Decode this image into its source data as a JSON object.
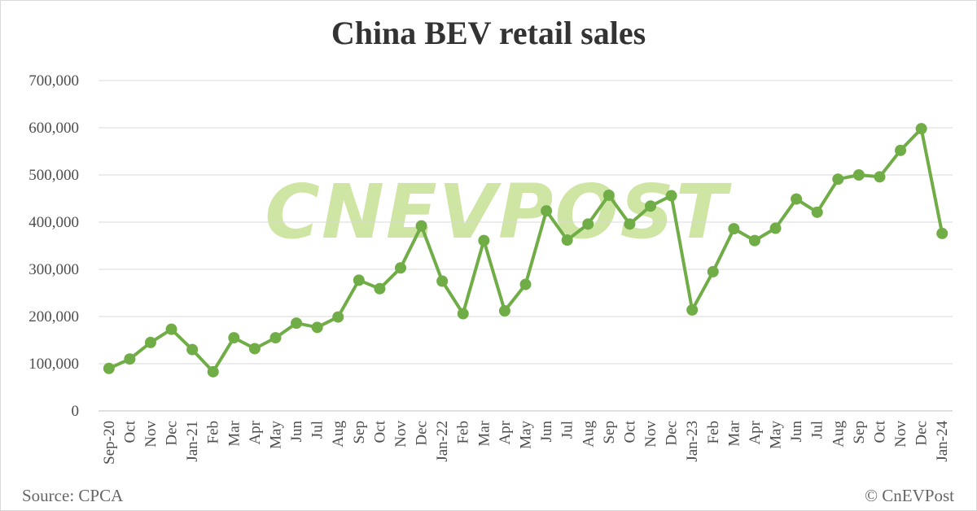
{
  "chart_data": {
    "type": "line",
    "title": "China BEV retail sales",
    "source": "Source: CPCA",
    "copyright": "© CnEVPost",
    "watermark": "CNEVPOST",
    "line_color": "#70ad47",
    "watermark_color": "#a9d15a",
    "grid": true,
    "ylim": [
      0,
      700000
    ],
    "yticks": [
      0,
      100000,
      200000,
      300000,
      400000,
      500000,
      600000,
      700000
    ],
    "ytick_labels": [
      "0",
      "100,000",
      "200,000",
      "300,000",
      "400,000",
      "500,000",
      "600,000",
      "700,000"
    ],
    "categories": [
      "Sep-20",
      "Oct",
      "Nov",
      "Dec",
      "Jan-21",
      "Feb",
      "Mar",
      "Apr",
      "May",
      "Jun",
      "Jul",
      "Aug",
      "Sep",
      "Oct",
      "Nov",
      "Dec",
      "Jan-22",
      "Feb",
      "Mar",
      "Apr",
      "May",
      "Jun",
      "Jul",
      "Aug",
      "Sep",
      "Oct",
      "Nov",
      "Dec",
      "Jan-23",
      "Feb",
      "Mar",
      "Apr",
      "May",
      "Jun",
      "Jul",
      "Aug",
      "Sep",
      "Oct",
      "Nov",
      "Dec",
      "Jan-24"
    ],
    "series": [
      {
        "values": [
          90000,
          110000,
          145000,
          173000,
          130000,
          83000,
          155000,
          132000,
          155000,
          186000,
          177000,
          199000,
          277000,
          259000,
          303000,
          392000,
          275000,
          206000,
          361000,
          212000,
          268000,
          424000,
          362000,
          396000,
          457000,
          396000,
          434000,
          456000,
          214000,
          295000,
          386000,
          361000,
          387000,
          449000,
          421000,
          491000,
          500000,
          496000,
          552000,
          598000,
          376000
        ]
      }
    ]
  }
}
